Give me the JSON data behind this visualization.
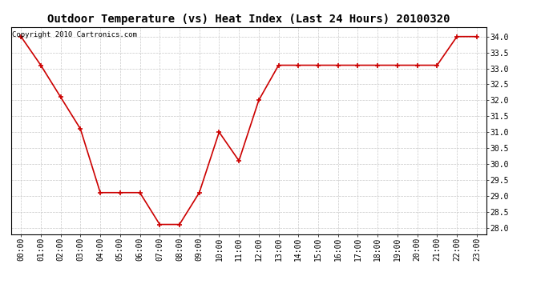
{
  "title": "Outdoor Temperature (vs) Heat Index (Last 24 Hours) 20100320",
  "copyright_text": "Copyright 2010 Cartronics.com",
  "x_labels": [
    "00:00",
    "01:00",
    "02:00",
    "03:00",
    "04:00",
    "05:00",
    "06:00",
    "07:00",
    "08:00",
    "09:00",
    "10:00",
    "11:00",
    "12:00",
    "13:00",
    "14:00",
    "15:00",
    "16:00",
    "17:00",
    "18:00",
    "19:00",
    "20:00",
    "21:00",
    "22:00",
    "23:00"
  ],
  "y_values": [
    34.0,
    33.1,
    32.1,
    31.1,
    29.1,
    29.1,
    29.1,
    28.1,
    28.1,
    29.1,
    31.0,
    30.1,
    32.0,
    33.1,
    33.1,
    33.1,
    33.1,
    33.1,
    33.1,
    33.1,
    33.1,
    33.1,
    34.0,
    34.0
  ],
  "line_color": "#cc0000",
  "marker": "+",
  "marker_size": 4,
  "marker_edge_width": 1.2,
  "line_width": 1.2,
  "ylim": [
    27.8,
    34.3
  ],
  "yticks": [
    28.0,
    28.5,
    29.0,
    29.5,
    30.0,
    30.5,
    31.0,
    31.5,
    32.0,
    32.5,
    33.0,
    33.5,
    34.0
  ],
  "bg_color": "#ffffff",
  "grid_color": "#c8c8c8",
  "title_fontsize": 10,
  "tick_fontsize": 7,
  "copyright_fontsize": 6.5
}
